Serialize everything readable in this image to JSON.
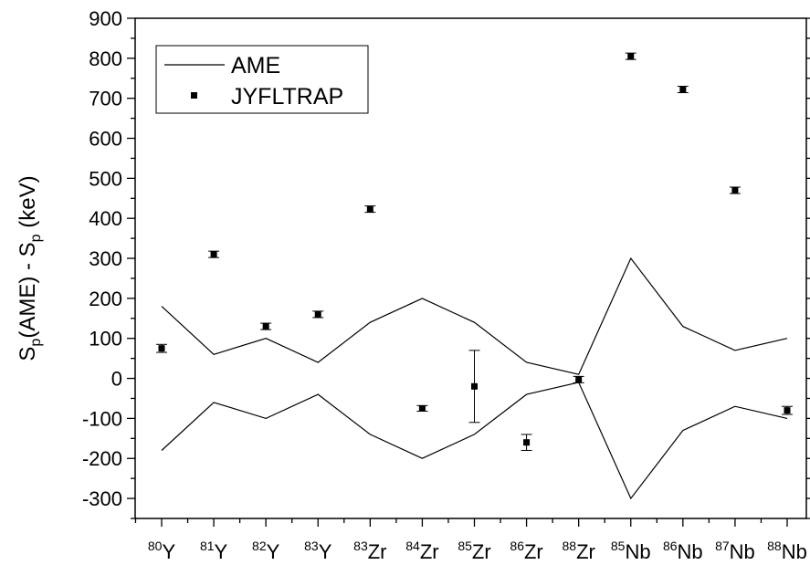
{
  "chart_data": {
    "type": "line",
    "ylabel": {
      "main": "S",
      "sub1": "p",
      "mid": "(AME) - S",
      "sub2": "p",
      "end": " (keV)"
    },
    "ylim": [
      -350,
      900
    ],
    "yticks": [
      -300,
      -200,
      -100,
      0,
      100,
      200,
      300,
      400,
      500,
      600,
      700,
      800,
      900
    ],
    "categories": [
      {
        "mass": "80",
        "element": "Y"
      },
      {
        "mass": "81",
        "element": "Y"
      },
      {
        "mass": "82",
        "element": "Y"
      },
      {
        "mass": "83",
        "element": "Y"
      },
      {
        "mass": "83",
        "element": "Zr"
      },
      {
        "mass": "84",
        "element": "Zr"
      },
      {
        "mass": "85",
        "element": "Zr"
      },
      {
        "mass": "86",
        "element": "Zr"
      },
      {
        "mass": "88",
        "element": "Zr"
      },
      {
        "mass": "85",
        "element": "Nb"
      },
      {
        "mass": "86",
        "element": "Nb"
      },
      {
        "mass": "87",
        "element": "Nb"
      },
      {
        "mass": "88",
        "element": "Nb"
      }
    ],
    "legend_position": "top-left",
    "series": [
      {
        "name": "AME",
        "kind": "line",
        "upper": [
          180,
          60,
          100,
          40,
          140,
          200,
          140,
          40,
          10,
          300,
          130,
          70,
          100
        ],
        "lower": [
          -180,
          -60,
          -100,
          -40,
          -140,
          -200,
          -140,
          -40,
          -10,
          -300,
          -130,
          -70,
          -100
        ]
      },
      {
        "name": "JYFLTRAP",
        "kind": "points",
        "values": [
          75,
          310,
          130,
          160,
          423,
          -75,
          -20,
          -160,
          -3,
          805,
          722,
          470,
          -80
        ],
        "errors": [
          10,
          8,
          8,
          8,
          8,
          7,
          90,
          20,
          8,
          8,
          8,
          8,
          10
        ]
      }
    ]
  }
}
